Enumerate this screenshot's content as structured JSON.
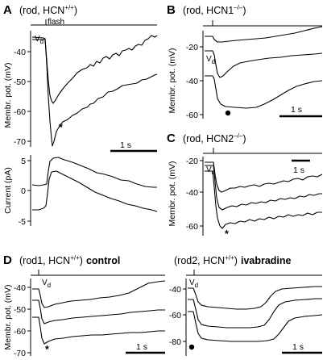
{
  "panels": {
    "A": {
      "label": "A",
      "title_prefix": "(rod, HCN",
      "title_sup": "+/+",
      "title_suffix": ")",
      "flash_label": "flash",
      "vd_label": "V",
      "vd_sub": "d",
      "ylabel_voltage": "Membr. pot. (mV)",
      "yticks_voltage": [
        "-40",
        "-50",
        "-60",
        "-70"
      ],
      "ylabel_current": "Current (pA)",
      "yticks_current": [
        "5",
        "0",
        "-5"
      ],
      "scale_label": "1 s",
      "marker_star": "*"
    },
    "B": {
      "label": "B",
      "title": "(rod, HCN1",
      "title_sup": "–/–",
      "title_suffix": ")",
      "vd_label": "V",
      "vd_sub": "d",
      "ylabel": "Membr. pot. (mV)",
      "yticks": [
        "-20",
        "-40",
        "-60"
      ],
      "scale_label": "1 s"
    },
    "C": {
      "label": "C",
      "title": "(rod, HCN2",
      "title_sup": "–/–",
      "title_suffix": ")",
      "vd_label": "V",
      "vd_sub": "d",
      "ylabel": "Membr. pot. (mV)",
      "yticks": [
        "-20",
        "-40",
        "-60"
      ],
      "scale_label": "1 s",
      "marker_star": "*"
    },
    "D": {
      "label": "D",
      "left_title_prefix": "(rod1, HCN",
      "left_title_sup": "+/+",
      "left_title_suffix": ")",
      "left_title_bold": "control",
      "right_title_prefix": "(rod2, HCN",
      "right_title_sup": "+/+",
      "right_title_suffix": ")",
      "right_title_bold": "ivabradine",
      "vd_label": "V",
      "vd_sub": "d",
      "ylabel": "Membr. pot. (mV)",
      "yticks_left": [
        "-40",
        "-50",
        "-60",
        "-70"
      ],
      "yticks_right": [
        "-40",
        "-60",
        "-80"
      ],
      "scale_label": "1 s",
      "marker_star": "*"
    }
  }
}
